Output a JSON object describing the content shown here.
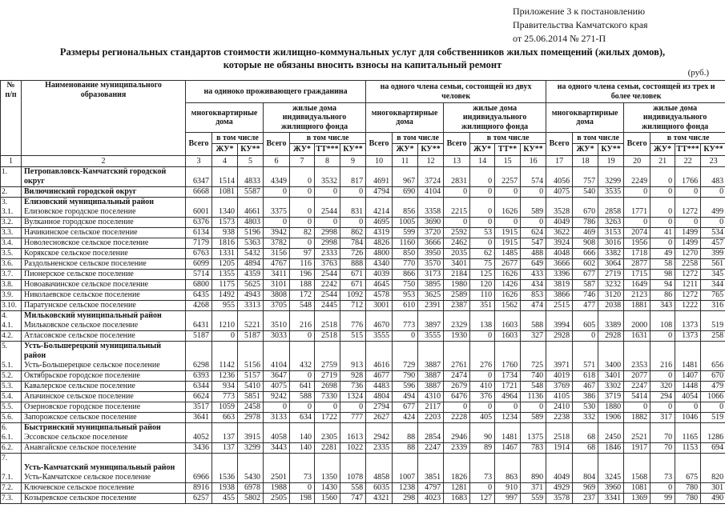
{
  "annex_note": {
    "line1": "Приложение 3 к постановлению",
    "line2": "Правительства Камчатского края",
    "line3": "от 25.06.2014   № 271-П"
  },
  "title": {
    "line1": "Размеры  региональных  стандартов  стоимости  жилищно-коммунальных   услуг для собственников жилых помещений (жилых домов),",
    "line2": "которые не обязаны вносить взносы на капитальный ремонт"
  },
  "currency_note": "(руб.)",
  "table": {
    "corner_num": "№\nп/п",
    "corner_name": "Наименование муниципального образования",
    "subhead": {
      "total": "Всего",
      "including": "в том числе",
      "zhu": "ЖУ*",
      "ku": "КУ**"
    },
    "sections": [
      {
        "title": "на  одиноко проживающего гражданина",
        "mkd": "многоквартирные дома",
        "izhf": "жилые дома индивидуального жилищного фонда",
        "tt": "ТТ***"
      },
      {
        "title": "на  одного члена  семьи, состоящей  из двух человек",
        "mkd": "многоквартирные дома",
        "izhf": "жилые дома индивидуального жилищного фонда",
        "tt": "ТТ**"
      },
      {
        "title": "на  одного члена  семьи, состоящей из трех и более человек",
        "mkd": "многоквартирные дома",
        "izhf": "жилые дома индивидуального жилищного фонда",
        "tt": "ТТ***"
      }
    ],
    "col_numbers": [
      "1",
      "2",
      "3",
      "4",
      "5",
      "6",
      "7",
      "8",
      "9",
      "10",
      "11",
      "12",
      "13",
      "14",
      "15",
      "16",
      "17",
      "18",
      "19",
      "20",
      "21",
      "22",
      "23"
    ],
    "rows": [
      {
        "num": "1.",
        "name_lines": [
          {
            "text": "Петропавловск-Камчатский городской",
            "strong": true
          },
          {
            "text": "округ",
            "strong": true
          }
        ],
        "values": [
          6347,
          1514,
          4833,
          4349,
          0,
          3532,
          817,
          4691,
          967,
          3724,
          2831,
          0,
          2257,
          574,
          4056,
          757,
          3299,
          2249,
          0,
          1766,
          483
        ]
      },
      {
        "num": "2.",
        "name_lines": [
          {
            "text": "Вилючинский городской округ",
            "strong": true
          }
        ],
        "values": [
          6668,
          1081,
          5587,
          0,
          0,
          0,
          0,
          4794,
          690,
          4104,
          0,
          0,
          0,
          0,
          4075,
          540,
          3535,
          0,
          0,
          0,
          0
        ]
      },
      {
        "num": "3.\n3.1.",
        "name_lines": [
          {
            "text": "Елизовский муниципальный район",
            "strong": true
          },
          {
            "text": "Елизовское городское поселение",
            "strong": false
          }
        ],
        "values": [
          6001,
          1340,
          4661,
          3375,
          0,
          2544,
          831,
          4214,
          856,
          3358,
          2215,
          0,
          1626,
          589,
          3528,
          670,
          2858,
          1771,
          0,
          1272,
          499
        ]
      },
      {
        "num": "3.2.",
        "name_lines": [
          {
            "text": "Вулканное  городское поселение",
            "strong": false
          }
        ],
        "values": [
          6376,
          1573,
          4803,
          0,
          0,
          0,
          0,
          4695,
          1005,
          3690,
          0,
          0,
          0,
          0,
          4049,
          786,
          3263,
          0,
          0,
          0,
          0
        ]
      },
      {
        "num": "3.3.",
        "name_lines": [
          {
            "text": "Начикинское сельское поселение",
            "strong": false
          }
        ],
        "values": [
          6134,
          938,
          5196,
          3942,
          82,
          2998,
          862,
          4319,
          599,
          3720,
          2592,
          53,
          1915,
          624,
          3622,
          469,
          3153,
          2074,
          41,
          1499,
          534
        ]
      },
      {
        "num": "3.4.",
        "name_lines": [
          {
            "text": "Новолесновское сельское поселение",
            "strong": false
          }
        ],
        "values": [
          7179,
          1816,
          5363,
          3782,
          0,
          2998,
          784,
          4826,
          1160,
          3666,
          2462,
          0,
          1915,
          547,
          3924,
          908,
          3016,
          1956,
          0,
          1499,
          457
        ]
      },
      {
        "num": "3.5.",
        "name_lines": [
          {
            "text": "Корякское сельское поселение",
            "strong": false
          }
        ],
        "values": [
          6763,
          1331,
          5432,
          3156,
          97,
          2333,
          726,
          4800,
          850,
          3950,
          2035,
          62,
          1485,
          488,
          4048,
          666,
          3382,
          1718,
          49,
          1270,
          399
        ]
      },
      {
        "num": "3.6.",
        "name_lines": [
          {
            "text": "Раздольненское сельское поселение",
            "strong": false
          }
        ],
        "values": [
          6099,
          1205,
          4894,
          4767,
          116,
          3763,
          888,
          4340,
          770,
          3570,
          3401,
          75,
          2677,
          649,
          3666,
          602,
          3064,
          2877,
          58,
          2258,
          561
        ]
      },
      {
        "num": "3.7.",
        "name_lines": [
          {
            "text": "Пионерское сельское поселение",
            "strong": false
          }
        ],
        "values": [
          5714,
          1355,
          4359,
          3411,
          196,
          2544,
          671,
          4039,
          866,
          3173,
          2184,
          125,
          1626,
          433,
          3396,
          677,
          2719,
          1715,
          98,
          1272,
          345
        ]
      },
      {
        "num": "3.8.",
        "name_lines": [
          {
            "text": "Новоавачинское сельское поселение",
            "strong": false
          }
        ],
        "values": [
          6800,
          1175,
          5625,
          3101,
          188,
          2242,
          671,
          4645,
          750,
          3895,
          1980,
          120,
          1426,
          434,
          3819,
          587,
          3232,
          1649,
          94,
          1211,
          344
        ]
      },
      {
        "num": "3.9.",
        "name_lines": [
          {
            "text": "Николаевское сельское поселение",
            "strong": false
          }
        ],
        "values": [
          6435,
          1492,
          4943,
          3808,
          172,
          2544,
          1092,
          4578,
          953,
          3625,
          2589,
          110,
          1626,
          853,
          3866,
          746,
          3120,
          2123,
          86,
          1272,
          765
        ]
      },
      {
        "num": "3.10.",
        "name_lines": [
          {
            "text": "Паратунское сельское поселение",
            "strong": false
          }
        ],
        "values": [
          4268,
          955,
          3313,
          3705,
          548,
          2445,
          712,
          3001,
          610,
          2391,
          2387,
          351,
          1562,
          474,
          2515,
          477,
          2038,
          1881,
          343,
          1222,
          316
        ]
      },
      {
        "num": "4.\n4.1.",
        "name_lines": [
          {
            "text": "Мильковский  муниципальный район",
            "strong": true
          },
          {
            "text": "Мильковское сельское поселение",
            "strong": false
          }
        ],
        "values": [
          6431,
          1210,
          5221,
          3510,
          216,
          2518,
          776,
          4670,
          773,
          3897,
          2329,
          138,
          1603,
          588,
          3994,
          605,
          3389,
          2000,
          108,
          1373,
          519
        ]
      },
      {
        "num": "4.2.",
        "name_lines": [
          {
            "text": "Атласовское сельское поселение",
            "strong": false
          }
        ],
        "values": [
          5187,
          0,
          5187,
          3033,
          0,
          2518,
          515,
          3555,
          0,
          3555,
          1930,
          0,
          1603,
          327,
          2928,
          0,
          2928,
          1631,
          0,
          1373,
          258
        ]
      },
      {
        "num": "5.\n\n5.1.",
        "name_lines": [
          {
            "text": "Усть-Большерецкий  муниципальный",
            "strong": true
          },
          {
            "text": "район",
            "strong": true
          },
          {
            "text": "Усть-Большерецкое сельское поселение",
            "strong": false
          }
        ],
        "values": [
          6298,
          1142,
          5156,
          4104,
          432,
          2759,
          913,
          4616,
          729,
          3887,
          2761,
          276,
          1760,
          725,
          3971,
          571,
          3400,
          2353,
          216,
          1481,
          656
        ]
      },
      {
        "num": "5.2.",
        "name_lines": [
          {
            "text": "Октябрьское городское  поселение",
            "strong": false
          }
        ],
        "values": [
          6393,
          1236,
          5157,
          3647,
          0,
          2719,
          928,
          4677,
          790,
          3887,
          2474,
          0,
          1734,
          740,
          4019,
          618,
          3401,
          2077,
          0,
          1407,
          670
        ]
      },
      {
        "num": "5.3.",
        "name_lines": [
          {
            "text": "Кавалерское сельское поселение",
            "strong": false
          }
        ],
        "values": [
          6344,
          934,
          5410,
          4075,
          641,
          2698,
          736,
          4483,
          596,
          3887,
          2679,
          410,
          1721,
          548,
          3769,
          467,
          3302,
          2247,
          320,
          1448,
          479
        ]
      },
      {
        "num": "5.4.",
        "name_lines": [
          {
            "text": "Апачинское сельское поселение",
            "strong": false
          }
        ],
        "values": [
          6624,
          773,
          5851,
          9242,
          588,
          7330,
          1324,
          4804,
          494,
          4310,
          6476,
          376,
          4964,
          1136,
          4105,
          386,
          3719,
          5414,
          294,
          4054,
          1066
        ]
      },
      {
        "num": "5.5.",
        "name_lines": [
          {
            "text": "Озерновское городское  поселение",
            "strong": false
          }
        ],
        "values": [
          3517,
          1059,
          2458,
          0,
          0,
          0,
          0,
          2794,
          677,
          2117,
          0,
          0,
          0,
          0,
          2410,
          530,
          1880,
          0,
          0,
          0,
          0
        ]
      },
      {
        "num": "5.6.",
        "name_lines": [
          {
            "text": "Запорожское сельское поселение",
            "strong": false
          }
        ],
        "values": [
          3641,
          663,
          2978,
          3133,
          634,
          1722,
          777,
          2627,
          424,
          2203,
          2228,
          405,
          1234,
          589,
          2238,
          332,
          1906,
          1882,
          317,
          1046,
          519
        ]
      },
      {
        "num": "6.\n6.1.",
        "name_lines": [
          {
            "text": "Быстринский  муниципальный район",
            "strong": true
          },
          {
            "text": "Эссовское  сельское поселение",
            "strong": false
          }
        ],
        "values": [
          4052,
          137,
          3915,
          4058,
          140,
          2305,
          1613,
          2942,
          88,
          2854,
          2946,
          90,
          1481,
          1375,
          2518,
          68,
          2450,
          2521,
          70,
          1165,
          1286
        ]
      },
      {
        "num": "6.2.",
        "name_lines": [
          {
            "text": "Анавгайское сельское поселение",
            "strong": false
          }
        ],
        "values": [
          3436,
          137,
          3299,
          3443,
          140,
          2281,
          1022,
          2335,
          88,
          2247,
          2339,
          89,
          1467,
          783,
          1914,
          68,
          1846,
          1917,
          70,
          1153,
          694
        ]
      },
      {
        "num": "7.\n\n7.1.",
        "name_lines": [
          {
            "text": "",
            "strong": false
          },
          {
            "text": "Усть-Камчатский  муниципальный район",
            "strong": true
          },
          {
            "text": "Усть-Камчатское сельское поселение",
            "strong": false
          }
        ],
        "values": [
          6966,
          1536,
          5430,
          2501,
          73,
          1350,
          1078,
          4858,
          1007,
          3851,
          1826,
          73,
          863,
          890,
          4049,
          804,
          3245,
          1568,
          73,
          675,
          820
        ]
      },
      {
        "num": "7.2.",
        "name_lines": [
          {
            "text": "Ключевское  сельское поселение",
            "strong": false
          }
        ],
        "values": [
          8916,
          1938,
          6978,
          1988,
          0,
          1430,
          558,
          6035,
          1238,
          4797,
          1281,
          0,
          910,
          371,
          4929,
          969,
          3960,
          1081,
          0,
          780,
          301
        ]
      },
      {
        "num": "7.3.",
        "name_lines": [
          {
            "text": "Козыревское  сельское поселение",
            "strong": false
          }
        ],
        "values": [
          6257,
          455,
          5802,
          2505,
          198,
          1560,
          747,
          4321,
          298,
          4023,
          1683,
          127,
          997,
          559,
          3578,
          237,
          3341,
          1369,
          99,
          780,
          490
        ]
      }
    ]
  }
}
